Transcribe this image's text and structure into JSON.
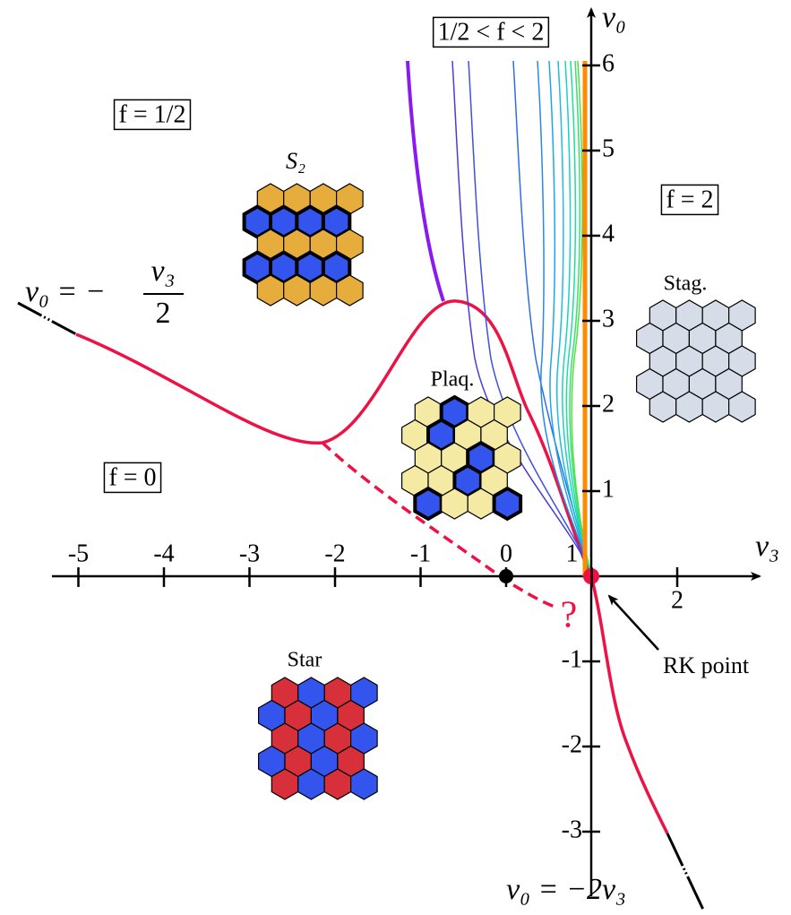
{
  "axes": {
    "x_title": "v₃",
    "y_title": "v₀",
    "x_ticks": [
      -5,
      -4,
      -3,
      -2,
      -1,
      0,
      1,
      2
    ],
    "y_ticks": [
      -3,
      -2,
      -1,
      1,
      2,
      3,
      4,
      5,
      6
    ]
  },
  "regions": {
    "half": "f = 1/2",
    "between": "1/2 < f < 2",
    "two": "f = 2",
    "zero": "f = 0"
  },
  "phases": {
    "s2": "S₂",
    "stag": "Stag.",
    "plaq": "Plaq.",
    "star": "Star"
  },
  "annotations": {
    "rk": "RK point",
    "question": "?",
    "upper_line": {
      "lhs": "v₀ = −",
      "numerator": "v₃",
      "denominator": "2"
    },
    "lower_line": "v₀ = −2v₃"
  }
}
